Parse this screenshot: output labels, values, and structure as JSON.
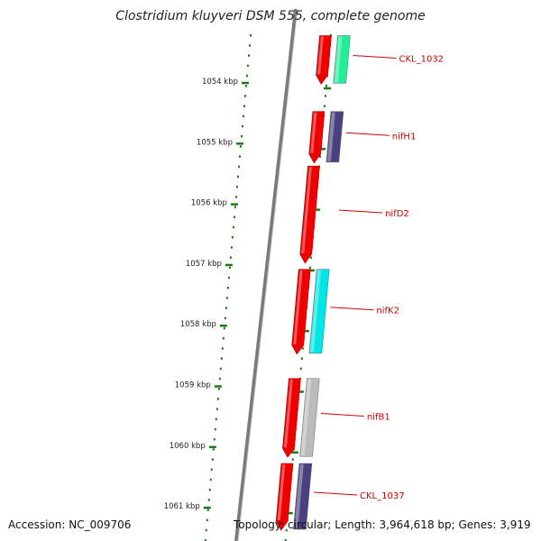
{
  "title": "Clostridium kluyveri DSM 555, complete genome",
  "footer": {
    "accession": "Accession: NC_009706",
    "stats": "Topology: circular; Length: 3,964,618 bp; Genes: 3,919"
  },
  "axis": {
    "ticks": [
      {
        "label": "1054 kbp",
        "kbp": 1054
      },
      {
        "label": "1055 kbp",
        "kbp": 1055
      },
      {
        "label": "1056 kbp",
        "kbp": 1056
      },
      {
        "label": "1057 kbp",
        "kbp": 1057
      },
      {
        "label": "1058 kbp",
        "kbp": 1058
      },
      {
        "label": "1059 kbp",
        "kbp": 1059
      },
      {
        "label": "1060 kbp",
        "kbp": 1060
      },
      {
        "label": "1061 kbp",
        "kbp": 1061
      }
    ],
    "tick_color": "#1b7a1b"
  },
  "genes": [
    {
      "label": "CKL_1032",
      "start": 1053.25,
      "end": 1054.05,
      "cds_color": "#22ee99"
    },
    {
      "label": "nifH1",
      "start": 1054.5,
      "end": 1055.35,
      "cds_color": "#4a4080"
    },
    {
      "label": "nifD2",
      "start": 1055.4,
      "end": 1057.0,
      "cds_color": null
    },
    {
      "label": "nifK2",
      "start": 1057.1,
      "end": 1058.5,
      "cds_color": "#00e5e5"
    },
    {
      "label": "nifB1",
      "start": 1058.9,
      "end": 1060.2,
      "cds_color": "#bbbbbb"
    },
    {
      "label": "CKL_1037",
      "start": 1060.3,
      "end": 1061.4,
      "cds_color": "#4a4080"
    }
  ],
  "colors": {
    "gene": "#ee0000",
    "label": "#cc0000",
    "backbone": "#7a7a7a"
  }
}
